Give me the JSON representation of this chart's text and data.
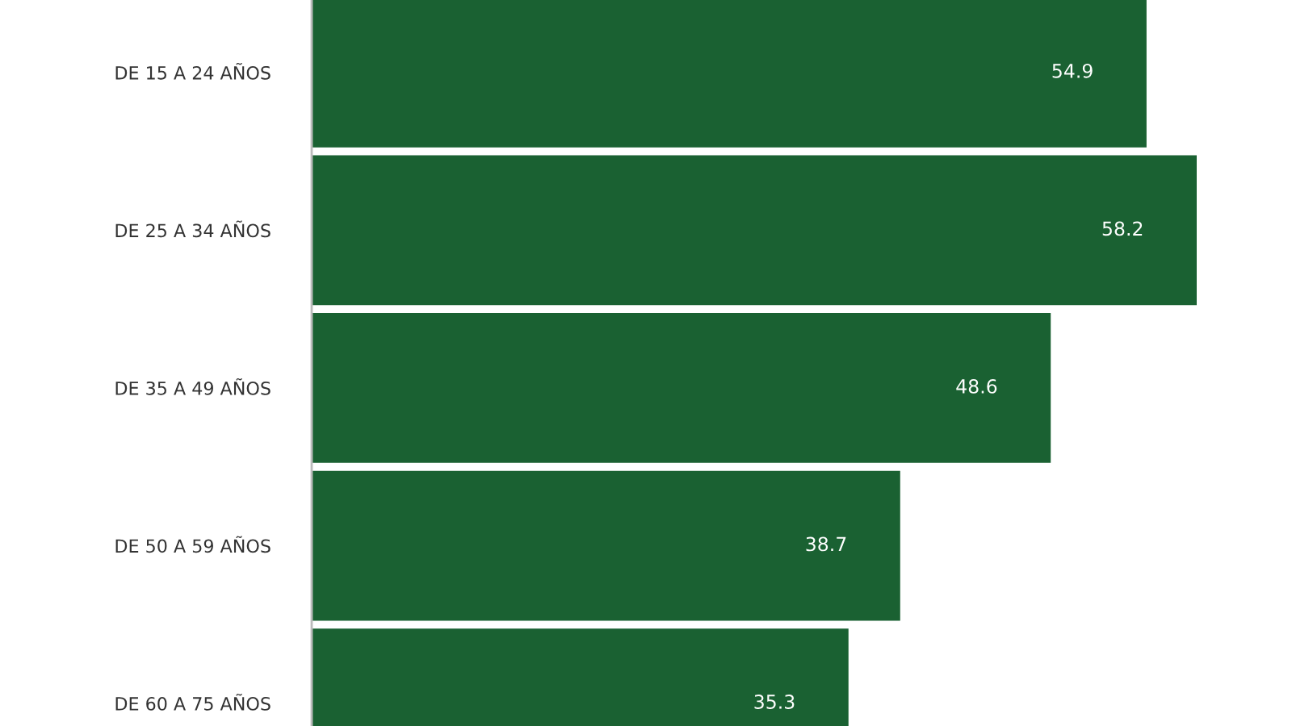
{
  "chart_data": {
    "type": "bar",
    "orientation": "horizontal",
    "categories": [
      "DE 15 A 24 AÑOS",
      "DE 25 A 34 AÑOS",
      "DE 35 A 49 AÑOS",
      "DE 50 A 59 AÑOS",
      "DE 60 A 75 AÑOS"
    ],
    "values": [
      54.9,
      58.2,
      48.6,
      38.7,
      35.3
    ],
    "color": "#1a6132",
    "data_labels": true,
    "grid": false,
    "legend": false
  }
}
